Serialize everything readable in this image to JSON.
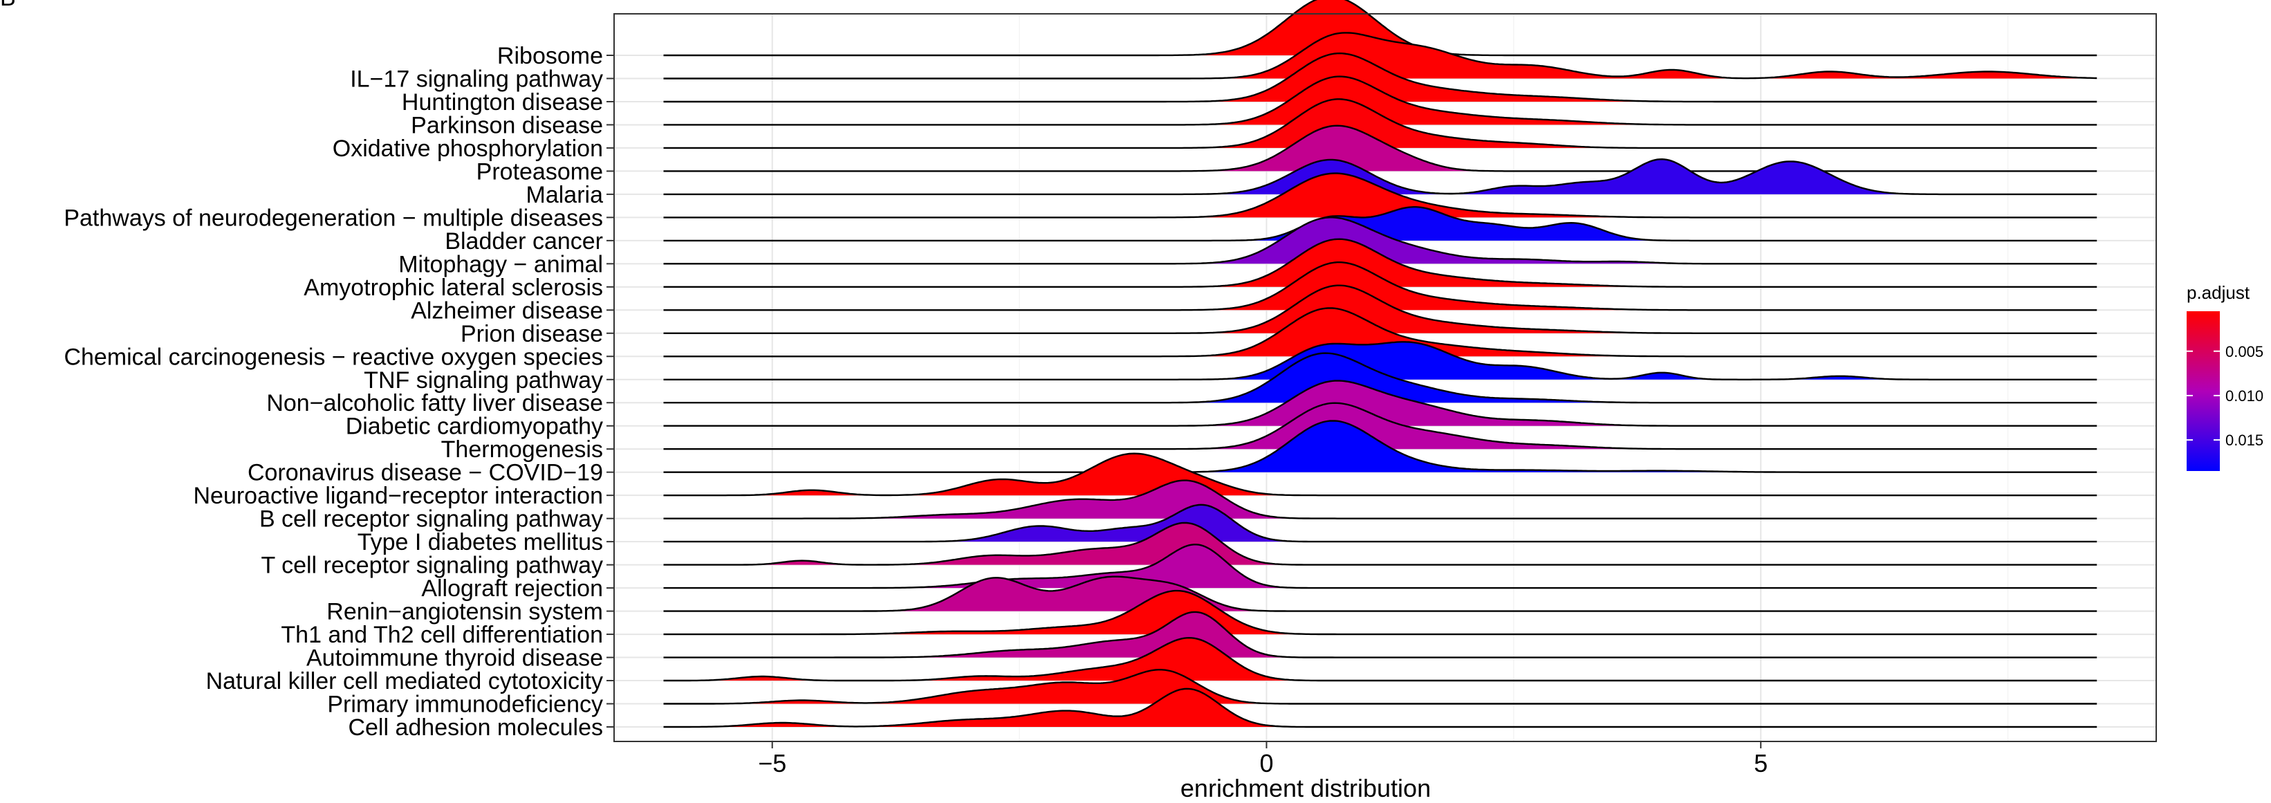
{
  "panel_label": "B",
  "chart_data": {
    "type": "ridgeline",
    "xlabel": "enrichment distribution",
    "xlim": [
      -6.6,
      9.0
    ],
    "xticks": [
      -5,
      0,
      5
    ],
    "xtick_labels": [
      "−5",
      "0",
      "5"
    ],
    "grid": true,
    "legend": {
      "title": "p.adjust",
      "position": "right",
      "range": [
        0.0005,
        0.0185
      ],
      "ticks": [
        0.005,
        0.01,
        0.015
      ],
      "tick_labels": [
        "0.005",
        "0.010",
        "0.015"
      ],
      "color_low": "#FF0000",
      "color_high": "#0000FF"
    },
    "line_range": [
      -6.1,
      8.4
    ],
    "series": [
      {
        "name": "Ribosome",
        "p_adjust": 0.0005,
        "peaks": [
          [
            0.65,
            0.45,
            1.7
          ]
        ]
      },
      {
        "name": "IL−17 signaling pathway",
        "p_adjust": 0.0006,
        "peaks": [
          [
            0.7,
            0.38,
            1.15
          ],
          [
            1.55,
            0.45,
            0.85
          ],
          [
            2.7,
            0.4,
            0.35
          ],
          [
            4.1,
            0.25,
            0.25
          ],
          [
            5.7,
            0.3,
            0.2
          ],
          [
            7.3,
            0.45,
            0.2
          ]
        ]
      },
      {
        "name": "Huntington disease",
        "p_adjust": 0.0006,
        "peaks": [
          [
            0.7,
            0.42,
            1.3
          ],
          [
            1.6,
            0.55,
            0.35
          ],
          [
            2.8,
            0.5,
            0.12
          ]
        ]
      },
      {
        "name": "Parkinson disease",
        "p_adjust": 0.0006,
        "peaks": [
          [
            0.7,
            0.42,
            1.3
          ],
          [
            1.6,
            0.55,
            0.35
          ],
          [
            2.8,
            0.5,
            0.12
          ]
        ]
      },
      {
        "name": "Oxidative phosphorylation",
        "p_adjust": 0.0008,
        "peaks": [
          [
            0.7,
            0.42,
            1.35
          ],
          [
            1.6,
            0.5,
            0.3
          ],
          [
            2.6,
            0.4,
            0.1
          ]
        ]
      },
      {
        "name": "Proteasome",
        "p_adjust": 0.0075,
        "peaks": [
          [
            0.7,
            0.42,
            1.3
          ],
          [
            1.4,
            0.3,
            0.2
          ]
        ]
      },
      {
        "name": "Malaria",
        "p_adjust": 0.016,
        "peaks": [
          [
            0.65,
            0.4,
            1.0
          ],
          [
            2.5,
            0.25,
            0.22
          ],
          [
            3.2,
            0.3,
            0.32
          ],
          [
            4.0,
            0.3,
            1.0
          ],
          [
            5.3,
            0.4,
            0.95
          ]
        ]
      },
      {
        "name": "Pathways of neurodegeneration − multiple diseases",
        "p_adjust": 0.0006,
        "peaks": [
          [
            0.65,
            0.45,
            1.2
          ],
          [
            1.5,
            0.5,
            0.3
          ],
          [
            2.7,
            0.5,
            0.08
          ]
        ]
      },
      {
        "name": "Bladder cancer",
        "p_adjust": 0.018,
        "peaks": [
          [
            0.65,
            0.3,
            0.65
          ],
          [
            1.5,
            0.35,
            0.95
          ],
          [
            2.3,
            0.3,
            0.4
          ],
          [
            3.1,
            0.3,
            0.5
          ]
        ]
      },
      {
        "name": "Mitophagy − animal",
        "p_adjust": 0.012,
        "peaks": [
          [
            0.6,
            0.42,
            1.25
          ],
          [
            1.4,
            0.45,
            0.4
          ],
          [
            2.6,
            0.4,
            0.12
          ],
          [
            3.6,
            0.3,
            0.06
          ]
        ]
      },
      {
        "name": "Amyotrophic lateral sclerosis",
        "p_adjust": 0.0006,
        "peaks": [
          [
            0.7,
            0.42,
            1.3
          ],
          [
            1.6,
            0.55,
            0.3
          ],
          [
            2.8,
            0.5,
            0.08
          ]
        ]
      },
      {
        "name": "Alzheimer disease",
        "p_adjust": 0.0006,
        "peaks": [
          [
            0.7,
            0.42,
            1.3
          ],
          [
            1.6,
            0.55,
            0.3
          ],
          [
            2.8,
            0.5,
            0.08
          ]
        ]
      },
      {
        "name": "Prion disease",
        "p_adjust": 0.0007,
        "peaks": [
          [
            0.7,
            0.42,
            1.3
          ],
          [
            1.6,
            0.55,
            0.3
          ],
          [
            2.8,
            0.5,
            0.08
          ]
        ]
      },
      {
        "name": "Chemical carcinogenesis − reactive oxygen species",
        "p_adjust": 0.0006,
        "peaks": [
          [
            0.6,
            0.42,
            1.3
          ],
          [
            1.5,
            0.55,
            0.35
          ],
          [
            2.6,
            0.5,
            0.1
          ]
        ]
      },
      {
        "name": "TNF signaling pathway",
        "p_adjust": 0.0185,
        "peaks": [
          [
            0.55,
            0.35,
            0.85
          ],
          [
            1.45,
            0.45,
            1.05
          ],
          [
            2.6,
            0.35,
            0.35
          ],
          [
            4.0,
            0.2,
            0.2
          ],
          [
            5.8,
            0.25,
            0.1
          ]
        ]
      },
      {
        "name": "Non−alcoholic fatty liver disease",
        "p_adjust": 0.0185,
        "peaks": [
          [
            0.55,
            0.42,
            1.35
          ],
          [
            1.4,
            0.45,
            0.45
          ],
          [
            2.6,
            0.45,
            0.1
          ]
        ]
      },
      {
        "name": "Diabetic cardiomyopathy",
        "p_adjust": 0.0085,
        "peaks": [
          [
            0.65,
            0.42,
            1.2
          ],
          [
            1.5,
            0.45,
            0.55
          ],
          [
            2.7,
            0.45,
            0.15
          ]
        ]
      },
      {
        "name": "Thermogenesis",
        "p_adjust": 0.0085,
        "peaks": [
          [
            0.65,
            0.42,
            1.25
          ],
          [
            1.6,
            0.5,
            0.45
          ],
          [
            2.8,
            0.45,
            0.1
          ]
        ]
      },
      {
        "name": "Coronavirus disease − COVID−19",
        "p_adjust": 0.0185,
        "peaks": [
          [
            0.65,
            0.42,
            1.45
          ],
          [
            1.4,
            0.4,
            0.2
          ],
          [
            2.6,
            0.5,
            0.06
          ],
          [
            4.0,
            0.5,
            0.04
          ]
        ]
      },
      {
        "name": "Neuroactive ligand−receptor interaction",
        "p_adjust": 0.0006,
        "peaks": [
          [
            -4.6,
            0.25,
            0.15
          ],
          [
            -2.7,
            0.35,
            0.45
          ],
          [
            -1.35,
            0.45,
            1.2
          ],
          [
            -0.6,
            0.3,
            0.2
          ]
        ]
      },
      {
        "name": "B cell receptor signaling pathway",
        "p_adjust": 0.0085,
        "peaks": [
          [
            -3.2,
            0.4,
            0.1
          ],
          [
            -1.9,
            0.5,
            0.55
          ],
          [
            -0.8,
            0.35,
            1.05
          ]
        ]
      },
      {
        "name": "Type I diabetes mellitus",
        "p_adjust": 0.015,
        "peaks": [
          [
            -2.3,
            0.35,
            0.45
          ],
          [
            -1.4,
            0.3,
            0.35
          ],
          [
            -0.65,
            0.3,
            1.05
          ]
        ]
      },
      {
        "name": "T cell receptor signaling pathway",
        "p_adjust": 0.0065,
        "peaks": [
          [
            -4.7,
            0.2,
            0.12
          ],
          [
            -2.8,
            0.35,
            0.25
          ],
          [
            -1.7,
            0.45,
            0.45
          ],
          [
            -0.8,
            0.32,
            1.15
          ]
        ]
      },
      {
        "name": "Allograft rejection",
        "p_adjust": 0.0085,
        "peaks": [
          [
            -2.5,
            0.45,
            0.25
          ],
          [
            -1.5,
            0.4,
            0.4
          ],
          [
            -0.7,
            0.3,
            1.2
          ]
        ]
      },
      {
        "name": "Renin−angiotensin system",
        "p_adjust": 0.0075,
        "peaks": [
          [
            -2.75,
            0.35,
            0.95
          ],
          [
            -1.6,
            0.4,
            0.95
          ],
          [
            -0.9,
            0.3,
            0.55
          ]
        ]
      },
      {
        "name": "Th1 and Th2 cell differentiation",
        "p_adjust": 0.0006,
        "peaks": [
          [
            -3.2,
            0.4,
            0.08
          ],
          [
            -2.0,
            0.45,
            0.2
          ],
          [
            -0.9,
            0.4,
            1.25
          ]
        ]
      },
      {
        "name": "Autoimmune thyroid disease",
        "p_adjust": 0.0075,
        "peaks": [
          [
            -2.5,
            0.45,
            0.2
          ],
          [
            -1.5,
            0.4,
            0.45
          ],
          [
            -0.7,
            0.3,
            1.25
          ]
        ]
      },
      {
        "name": "Natural killer cell mediated cytotoxicity",
        "p_adjust": 0.0006,
        "peaks": [
          [
            -5.1,
            0.25,
            0.12
          ],
          [
            -2.9,
            0.3,
            0.12
          ],
          [
            -1.6,
            0.5,
            0.35
          ],
          [
            -0.75,
            0.35,
            1.15
          ]
        ]
      },
      {
        "name": "Primary immunodeficiency",
        "p_adjust": 0.0006,
        "peaks": [
          [
            -4.7,
            0.3,
            0.1
          ],
          [
            -2.9,
            0.45,
            0.35
          ],
          [
            -2.0,
            0.4,
            0.55
          ],
          [
            -1.05,
            0.35,
            0.95
          ]
        ]
      },
      {
        "name": "Cell adhesion molecules",
        "p_adjust": 0.0006,
        "peaks": [
          [
            -4.9,
            0.3,
            0.12
          ],
          [
            -3.0,
            0.45,
            0.2
          ],
          [
            -2.0,
            0.4,
            0.45
          ],
          [
            -0.8,
            0.32,
            1.1
          ]
        ]
      }
    ]
  }
}
